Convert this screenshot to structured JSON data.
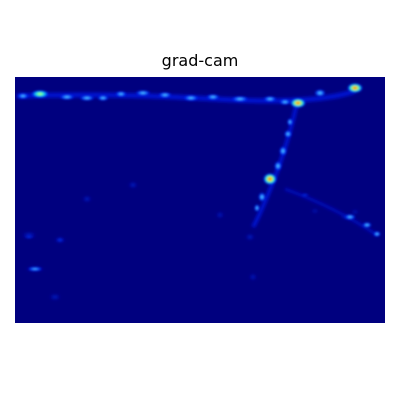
{
  "title": "grad-cam",
  "colormap": "jet",
  "colors": {
    "background": "#00007f",
    "page": "#ffffff"
  },
  "axes_visible": false
}
